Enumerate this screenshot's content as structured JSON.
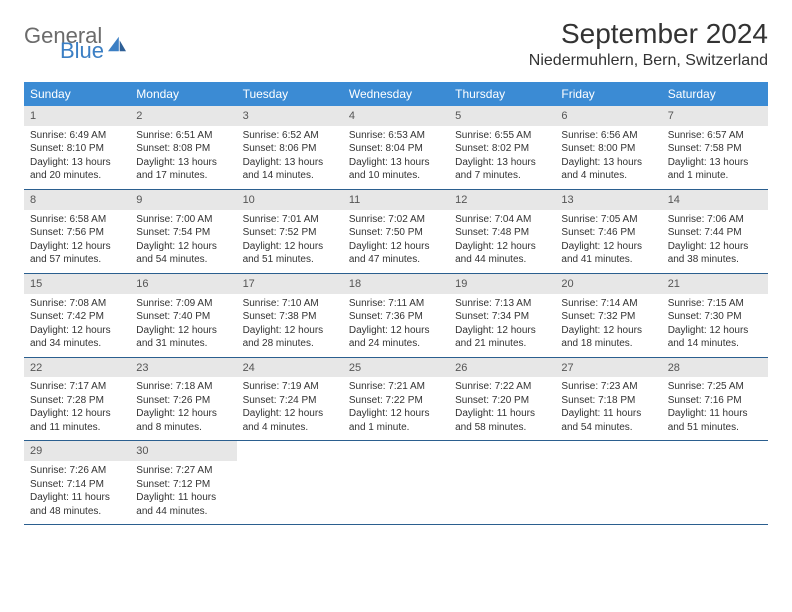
{
  "brand": {
    "word1": "General",
    "word2": "Blue"
  },
  "title": "September 2024",
  "location": "Niedermuhlern, Bern, Switzerland",
  "colors": {
    "header_bg": "#3b8bd4",
    "header_text": "#ffffff",
    "daynum_bg": "#e7e7e7",
    "week_divider": "#2b5f8f",
    "logo_gray": "#6b6b6b",
    "logo_blue": "#3b7fc4",
    "text": "#333333",
    "page_bg": "#ffffff"
  },
  "days_of_week": [
    "Sunday",
    "Monday",
    "Tuesday",
    "Wednesday",
    "Thursday",
    "Friday",
    "Saturday"
  ],
  "weeks": [
    [
      {
        "n": "1",
        "sr": "Sunrise: 6:49 AM",
        "ss": "Sunset: 8:10 PM",
        "dl": "Daylight: 13 hours and 20 minutes."
      },
      {
        "n": "2",
        "sr": "Sunrise: 6:51 AM",
        "ss": "Sunset: 8:08 PM",
        "dl": "Daylight: 13 hours and 17 minutes."
      },
      {
        "n": "3",
        "sr": "Sunrise: 6:52 AM",
        "ss": "Sunset: 8:06 PM",
        "dl": "Daylight: 13 hours and 14 minutes."
      },
      {
        "n": "4",
        "sr": "Sunrise: 6:53 AM",
        "ss": "Sunset: 8:04 PM",
        "dl": "Daylight: 13 hours and 10 minutes."
      },
      {
        "n": "5",
        "sr": "Sunrise: 6:55 AM",
        "ss": "Sunset: 8:02 PM",
        "dl": "Daylight: 13 hours and 7 minutes."
      },
      {
        "n": "6",
        "sr": "Sunrise: 6:56 AM",
        "ss": "Sunset: 8:00 PM",
        "dl": "Daylight: 13 hours and 4 minutes."
      },
      {
        "n": "7",
        "sr": "Sunrise: 6:57 AM",
        "ss": "Sunset: 7:58 PM",
        "dl": "Daylight: 13 hours and 1 minute."
      }
    ],
    [
      {
        "n": "8",
        "sr": "Sunrise: 6:58 AM",
        "ss": "Sunset: 7:56 PM",
        "dl": "Daylight: 12 hours and 57 minutes."
      },
      {
        "n": "9",
        "sr": "Sunrise: 7:00 AM",
        "ss": "Sunset: 7:54 PM",
        "dl": "Daylight: 12 hours and 54 minutes."
      },
      {
        "n": "10",
        "sr": "Sunrise: 7:01 AM",
        "ss": "Sunset: 7:52 PM",
        "dl": "Daylight: 12 hours and 51 minutes."
      },
      {
        "n": "11",
        "sr": "Sunrise: 7:02 AM",
        "ss": "Sunset: 7:50 PM",
        "dl": "Daylight: 12 hours and 47 minutes."
      },
      {
        "n": "12",
        "sr": "Sunrise: 7:04 AM",
        "ss": "Sunset: 7:48 PM",
        "dl": "Daylight: 12 hours and 44 minutes."
      },
      {
        "n": "13",
        "sr": "Sunrise: 7:05 AM",
        "ss": "Sunset: 7:46 PM",
        "dl": "Daylight: 12 hours and 41 minutes."
      },
      {
        "n": "14",
        "sr": "Sunrise: 7:06 AM",
        "ss": "Sunset: 7:44 PM",
        "dl": "Daylight: 12 hours and 38 minutes."
      }
    ],
    [
      {
        "n": "15",
        "sr": "Sunrise: 7:08 AM",
        "ss": "Sunset: 7:42 PM",
        "dl": "Daylight: 12 hours and 34 minutes."
      },
      {
        "n": "16",
        "sr": "Sunrise: 7:09 AM",
        "ss": "Sunset: 7:40 PM",
        "dl": "Daylight: 12 hours and 31 minutes."
      },
      {
        "n": "17",
        "sr": "Sunrise: 7:10 AM",
        "ss": "Sunset: 7:38 PM",
        "dl": "Daylight: 12 hours and 28 minutes."
      },
      {
        "n": "18",
        "sr": "Sunrise: 7:11 AM",
        "ss": "Sunset: 7:36 PM",
        "dl": "Daylight: 12 hours and 24 minutes."
      },
      {
        "n": "19",
        "sr": "Sunrise: 7:13 AM",
        "ss": "Sunset: 7:34 PM",
        "dl": "Daylight: 12 hours and 21 minutes."
      },
      {
        "n": "20",
        "sr": "Sunrise: 7:14 AM",
        "ss": "Sunset: 7:32 PM",
        "dl": "Daylight: 12 hours and 18 minutes."
      },
      {
        "n": "21",
        "sr": "Sunrise: 7:15 AM",
        "ss": "Sunset: 7:30 PM",
        "dl": "Daylight: 12 hours and 14 minutes."
      }
    ],
    [
      {
        "n": "22",
        "sr": "Sunrise: 7:17 AM",
        "ss": "Sunset: 7:28 PM",
        "dl": "Daylight: 12 hours and 11 minutes."
      },
      {
        "n": "23",
        "sr": "Sunrise: 7:18 AM",
        "ss": "Sunset: 7:26 PM",
        "dl": "Daylight: 12 hours and 8 minutes."
      },
      {
        "n": "24",
        "sr": "Sunrise: 7:19 AM",
        "ss": "Sunset: 7:24 PM",
        "dl": "Daylight: 12 hours and 4 minutes."
      },
      {
        "n": "25",
        "sr": "Sunrise: 7:21 AM",
        "ss": "Sunset: 7:22 PM",
        "dl": "Daylight: 12 hours and 1 minute."
      },
      {
        "n": "26",
        "sr": "Sunrise: 7:22 AM",
        "ss": "Sunset: 7:20 PM",
        "dl": "Daylight: 11 hours and 58 minutes."
      },
      {
        "n": "27",
        "sr": "Sunrise: 7:23 AM",
        "ss": "Sunset: 7:18 PM",
        "dl": "Daylight: 11 hours and 54 minutes."
      },
      {
        "n": "28",
        "sr": "Sunrise: 7:25 AM",
        "ss": "Sunset: 7:16 PM",
        "dl": "Daylight: 11 hours and 51 minutes."
      }
    ],
    [
      {
        "n": "29",
        "sr": "Sunrise: 7:26 AM",
        "ss": "Sunset: 7:14 PM",
        "dl": "Daylight: 11 hours and 48 minutes."
      },
      {
        "n": "30",
        "sr": "Sunrise: 7:27 AM",
        "ss": "Sunset: 7:12 PM",
        "dl": "Daylight: 11 hours and 44 minutes."
      },
      null,
      null,
      null,
      null,
      null
    ]
  ]
}
